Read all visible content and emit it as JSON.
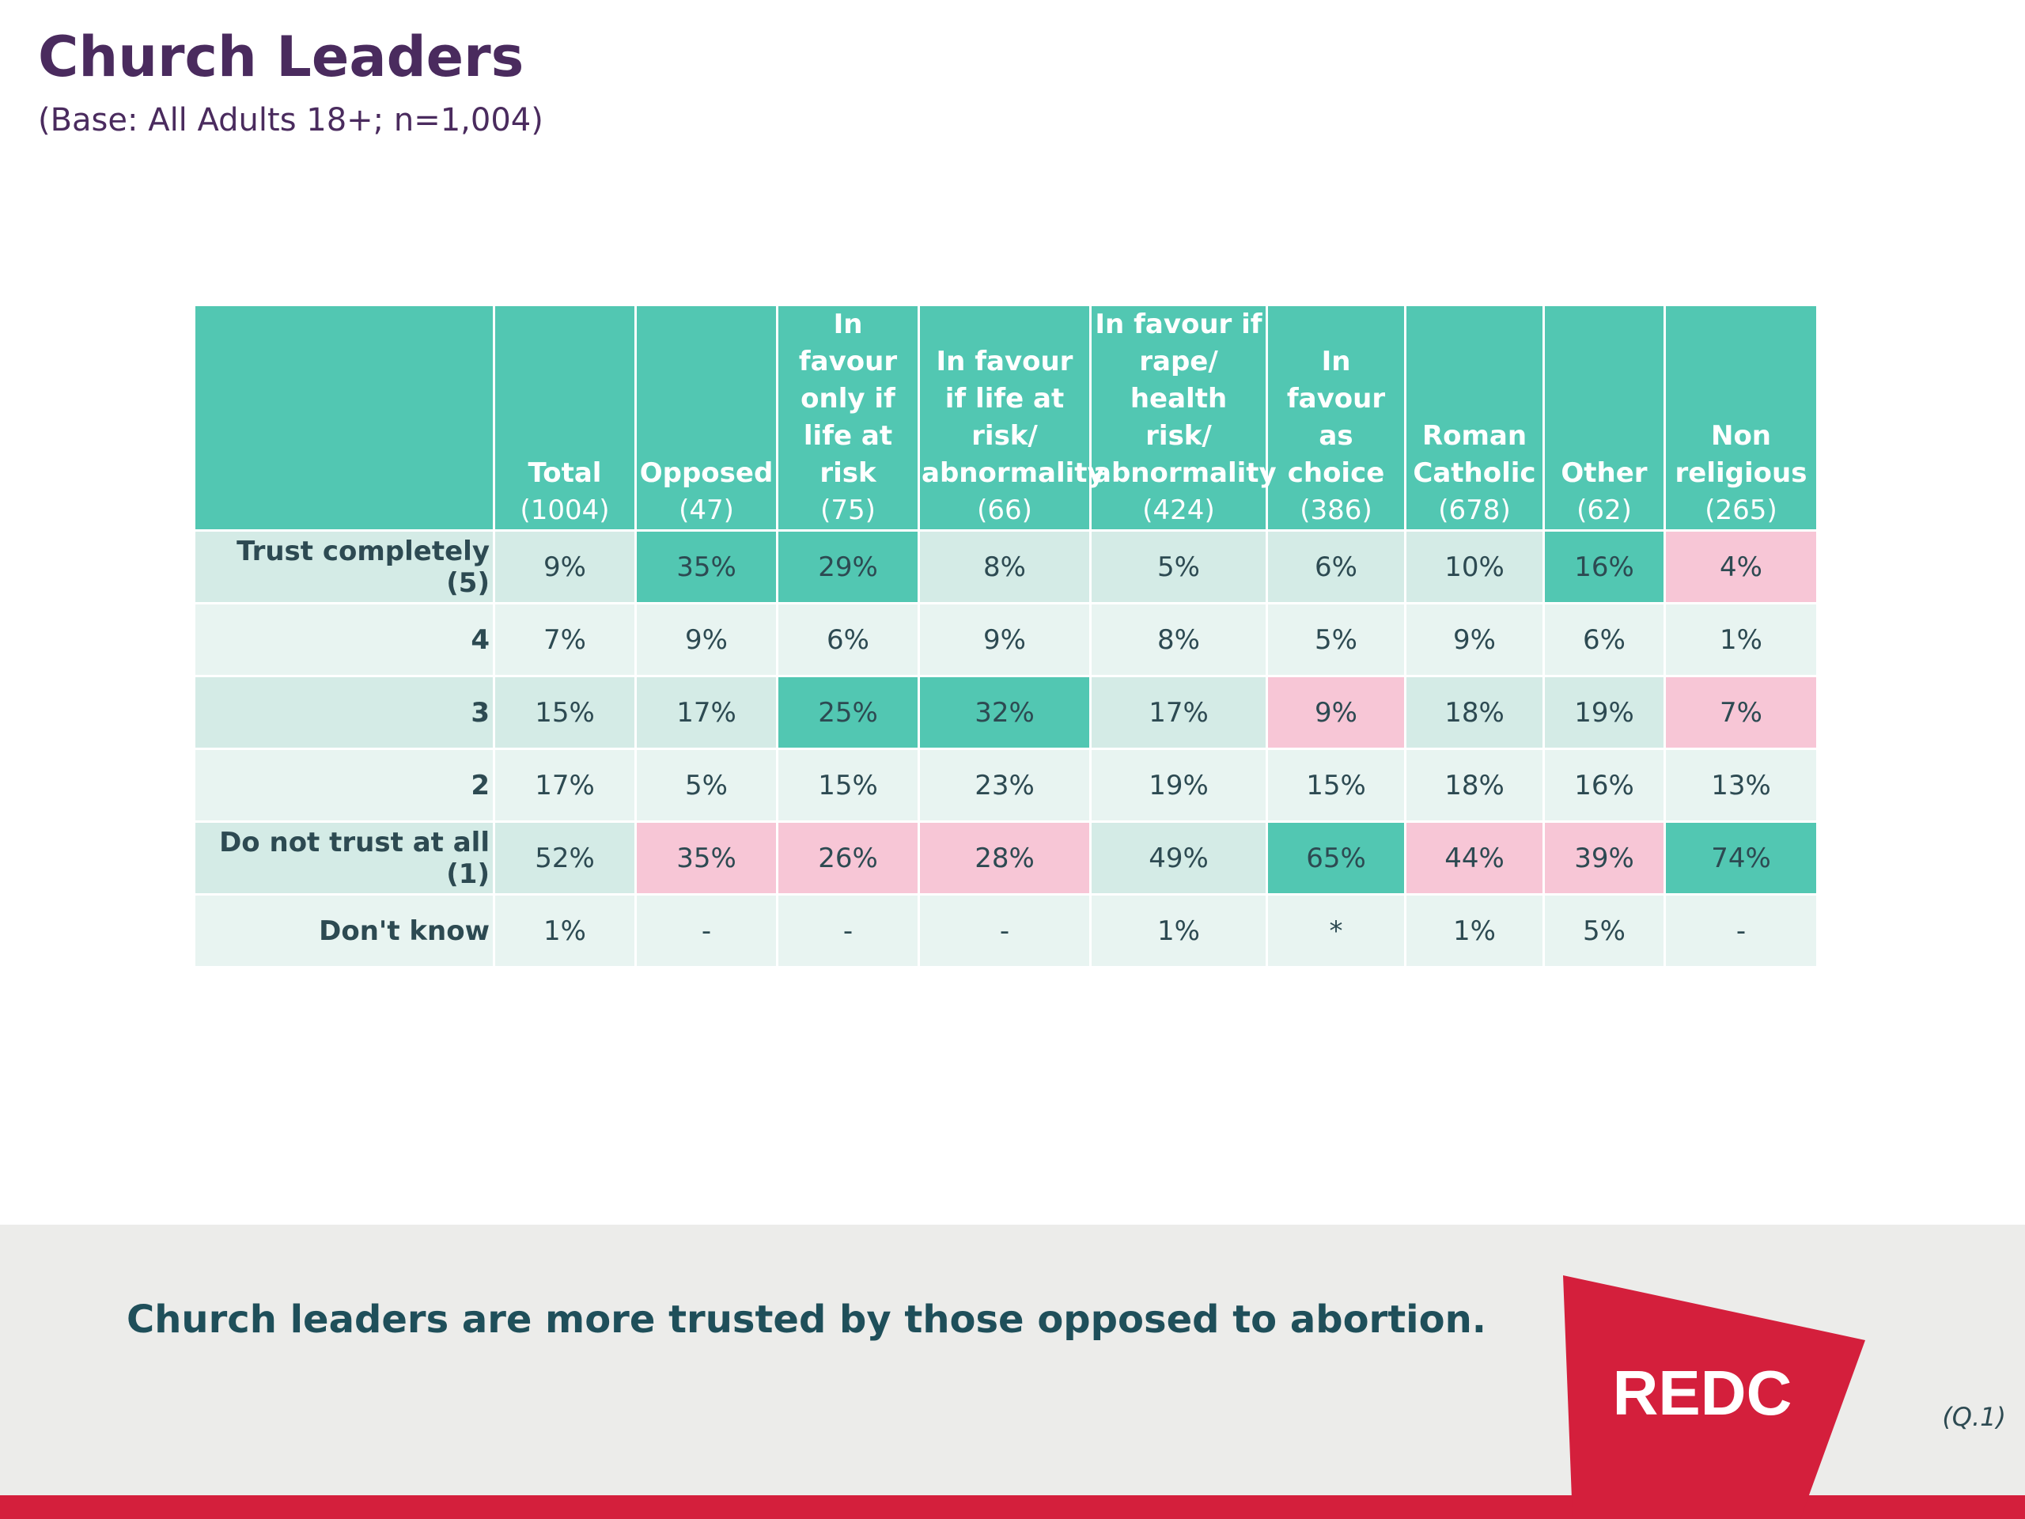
{
  "title": "Church Leaders",
  "subtitle": "(Base: All Adults 18+; n=1,004)",
  "conclusion": "Church leaders are more trusted by those opposed to abortion.",
  "logo_text": "REDC",
  "question_ref": "(Q.1)",
  "colors": {
    "header": "#52c7b2",
    "highlight_high": "#52c7b2",
    "highlight_low": "#f7c6d6",
    "row_shade": "#d4ebe6",
    "row_light": "#e8f4f1",
    "title": "#4a2b5e",
    "brand_red": "#d41f3c"
  },
  "chart_data": {
    "type": "table",
    "columns": [
      {
        "label": "Total",
        "base": "(1004)"
      },
      {
        "label": "Opposed",
        "base": "(47)"
      },
      {
        "label": "In favour only if life at risk",
        "base": "(75)"
      },
      {
        "label": "In favour if life at risk/ abnormality",
        "base": "(66)"
      },
      {
        "label": "In favour if rape/ health risk/ abnormality",
        "base": "(424)"
      },
      {
        "label": "In favour as choice",
        "base": "(386)"
      },
      {
        "label": "Roman Catholic",
        "base": "(678)"
      },
      {
        "label": "Other",
        "base": "(62)"
      },
      {
        "label": "Non religious",
        "base": "(265)"
      }
    ],
    "rows": [
      {
        "label": "Trust completely (5)",
        "values": [
          "9%",
          "35%",
          "29%",
          "8%",
          "5%",
          "6%",
          "10%",
          "16%",
          "4%"
        ],
        "highlight": [
          "",
          "high",
          "high",
          "",
          "",
          "",
          "",
          "high",
          "low"
        ]
      },
      {
        "label": "4",
        "values": [
          "7%",
          "9%",
          "6%",
          "9%",
          "8%",
          "5%",
          "9%",
          "6%",
          "1%"
        ],
        "highlight": [
          "",
          "",
          "",
          "",
          "",
          "",
          "",
          "",
          ""
        ]
      },
      {
        "label": "3",
        "values": [
          "15%",
          "17%",
          "25%",
          "32%",
          "17%",
          "9%",
          "18%",
          "19%",
          "7%"
        ],
        "highlight": [
          "",
          "",
          "high",
          "high",
          "",
          "low",
          "",
          "",
          "low"
        ]
      },
      {
        "label": "2",
        "values": [
          "17%",
          "5%",
          "15%",
          "23%",
          "19%",
          "15%",
          "18%",
          "16%",
          "13%"
        ],
        "highlight": [
          "",
          "",
          "",
          "",
          "",
          "",
          "",
          "",
          ""
        ]
      },
      {
        "label": "Do not trust at all (1)",
        "values": [
          "52%",
          "35%",
          "26%",
          "28%",
          "49%",
          "65%",
          "44%",
          "39%",
          "74%"
        ],
        "highlight": [
          "",
          "low",
          "low",
          "low",
          "",
          "high",
          "low",
          "low",
          "high"
        ]
      },
      {
        "label": "Don't know",
        "values": [
          "1%",
          "-",
          "-",
          "-",
          "1%",
          "*",
          "1%",
          "5%",
          "-"
        ],
        "highlight": [
          "",
          "",
          "",
          "",
          "",
          "",
          "",
          "",
          ""
        ]
      }
    ]
  }
}
